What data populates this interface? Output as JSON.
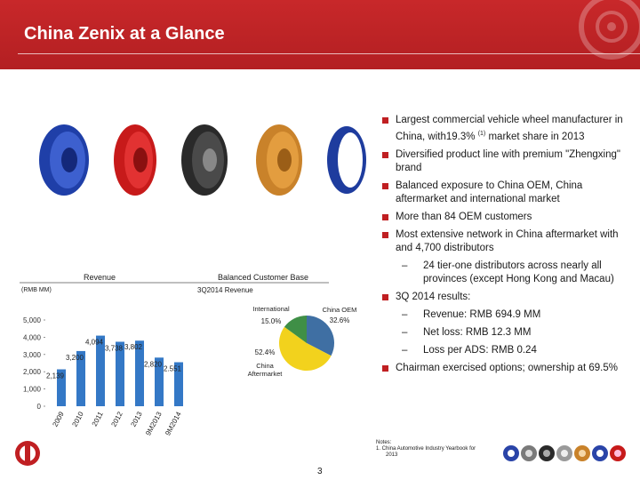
{
  "header": {
    "title": "China Zenix at a Glance"
  },
  "bullets": [
    {
      "text": "Largest commercial vehicle wheel manufacturer in China, with19.3%",
      "sup": "(1)",
      "tail": " market share in 2013"
    },
    {
      "text": "Diversified product line with premium \"Zhengxing\" brand"
    },
    {
      "text": "Balanced exposure to China OEM, China aftermarket and international market"
    },
    {
      "text": "More than 84 OEM customers"
    },
    {
      "text": "Most extensive network in China aftermarket with and 4,700 distributors"
    }
  ],
  "sub_distributors": "24 tier-one distributors across nearly all provinces (except Hong Kong and Macau)",
  "bullet_3q": "3Q 2014 results:",
  "results": [
    "Revenue: RMB 694.9 MM",
    "Net loss: RMB 12.3 MM",
    "Loss per ADS: RMB 0.24"
  ],
  "bullet_chairman": "Chairman exercised options; ownership at 69.5%",
  "chart_data": [
    {
      "type": "bar",
      "title": "Revenue",
      "unit_label": "(RMB MM)",
      "categories": [
        "2009",
        "2010",
        "2011",
        "2012",
        "2013",
        "9M2013",
        "9M2014"
      ],
      "values": [
        2139,
        3200,
        4094,
        3738,
        3802,
        2820,
        2551
      ],
      "value_labels": [
        "2,139",
        "3,200",
        "4,094",
        "3,738",
        "3,802",
        "2,820",
        "2.551"
      ],
      "y_ticks": [
        "0",
        "1,000",
        "2,000",
        "3,000",
        "4,000",
        "5,000"
      ],
      "ylim": [
        0,
        5000
      ],
      "colors": {
        "bar": "#3478c6"
      }
    },
    {
      "type": "pie",
      "title": "Balanced Customer Base",
      "subtitle": "3Q2014 Revenue",
      "slices": [
        {
          "name": "China OEM",
          "value": 32.6,
          "label": "32.6%",
          "color": "#3f6fa3"
        },
        {
          "name": "China Aftermarket",
          "value": 52.4,
          "label": "52.4%",
          "color": "#f2d21d"
        },
        {
          "name": "International",
          "value": 15.0,
          "label": "15.0%",
          "color": "#3f8f46"
        }
      ]
    }
  ],
  "notes": {
    "heading": "Notes:",
    "items": [
      "1.   China Automotive Industry Yearbook for",
      "2013"
    ]
  },
  "page_number": "3"
}
